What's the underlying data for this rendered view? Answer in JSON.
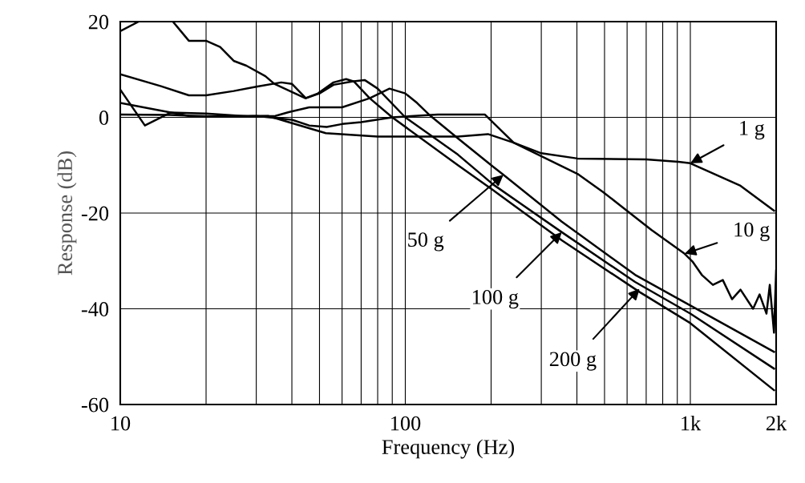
{
  "chart_data": {
    "type": "line",
    "xlabel": "Frequency (Hz)",
    "ylabel": "Response (dB)",
    "log": "x",
    "grid": true,
    "marker": "none",
    "line_style": "solid",
    "xlim": [
      10,
      2000
    ],
    "ylim": [
      -60,
      20
    ],
    "xticks": [
      10,
      {
        "value": 20,
        "label": null
      },
      {
        "value": 30,
        "label": null
      },
      {
        "value": 40,
        "label": null
      },
      {
        "value": 50,
        "label": null
      },
      {
        "value": 60,
        "label": null
      },
      {
        "value": 70,
        "label": null
      },
      {
        "value": 80,
        "label": null
      },
      {
        "value": 90,
        "label": null
      },
      100,
      {
        "value": 200,
        "label": null
      },
      {
        "value": 300,
        "label": null
      },
      {
        "value": 400,
        "label": null
      },
      {
        "value": 500,
        "label": null
      },
      {
        "value": 600,
        "label": null
      },
      {
        "value": 700,
        "label": null
      },
      {
        "value": 800,
        "label": null
      },
      {
        "value": 900,
        "label": null
      },
      {
        "value": 1000,
        "label": "1k"
      },
      {
        "value": 2000,
        "label": "2k"
      }
    ],
    "yticks": [
      -60,
      -40,
      -20,
      0,
      20
    ],
    "series": [
      {
        "color": "#000000",
        "x": [
          10,
          17.4,
          25,
          33,
          39,
          52.6,
          80,
          153,
          195,
          240,
          300,
          402,
          700,
          909,
          1000,
          1500,
          1966
        ],
        "values": [
          3,
          0.3,
          0.2,
          0.3,
          -1,
          -3.3,
          -4,
          -4,
          -3.5,
          -5.3,
          -7.5,
          -8.6,
          -8.8,
          -9.3,
          -9.6,
          -14.3,
          -19.5
        ]
      },
      {
        "color": "#000000",
        "x": [
          10,
          15,
          20,
          30,
          40,
          46,
          53,
          60,
          70,
          90,
          130,
          190,
          240,
          402,
          494,
          730,
          955,
          1020,
          1100,
          1200,
          1300,
          1400,
          1500,
          1660,
          1750,
          1850,
          1900,
          1966,
          2000
        ],
        "values": [
          0.6,
          0.5,
          0.2,
          0.3,
          -0.5,
          -1.7,
          -2,
          -1.4,
          -1,
          0,
          0.6,
          0.6,
          -5.3,
          -11.8,
          -15.6,
          -23.5,
          -28.5,
          -30.2,
          -33,
          -35,
          -34,
          -38,
          -36,
          -40,
          -37,
          -41,
          -35,
          -45,
          -32
        ]
      },
      {
        "color": "#000000",
        "x": [
          10,
          12.2,
          15,
          20,
          28,
          35,
          39,
          46,
          60,
          75,
          88,
          100,
          110,
          121,
          153,
          203,
          221,
          354,
          640,
          1000,
          1966
        ],
        "values": [
          5.8,
          -1.7,
          1,
          0.8,
          0.2,
          0.3,
          1.1,
          2.1,
          2.1,
          4,
          6,
          5,
          3,
          0.6,
          -4.4,
          -10.3,
          -12,
          -21.8,
          -32.9,
          -39.3,
          -49
        ]
      },
      {
        "color": "#000000",
        "x": [
          10,
          13.9,
          17.4,
          20,
          25,
          30,
          36.7,
          40,
          44.8,
          50,
          56,
          65,
          72,
          80,
          100,
          153,
          203,
          354,
          640,
          1000,
          1966
        ],
        "values": [
          9,
          6.5,
          4.6,
          4.6,
          5.5,
          6.4,
          7.3,
          7,
          4,
          5,
          6.8,
          7.5,
          7.8,
          6,
          0,
          -7.8,
          -14,
          -24,
          -34.4,
          -41,
          -52.5
        ]
      },
      {
        "color": "#000000",
        "x": [
          10,
          11.6,
          12,
          15.3,
          17.4,
          20,
          22.4,
          25,
          27.7,
          32.3,
          34.7,
          44.6,
          49.4,
          56,
          62,
          66,
          75,
          90,
          153,
          203,
          354,
          664,
          1000,
          1966
        ],
        "values": [
          18,
          20,
          null,
          20,
          16,
          16,
          14.7,
          11.8,
          10.8,
          8.6,
          7,
          4,
          5,
          7.3,
          8,
          7.5,
          4,
          0,
          -10,
          -15.2,
          -25.7,
          -36.5,
          -43,
          -57
        ]
      }
    ],
    "annotations": [
      {
        "text": "1 g",
        "x": 1000,
        "y": -9.6
      },
      {
        "text": "10 g",
        "x": 955,
        "y": -28.5
      },
      {
        "text": "50 g",
        "x": 221,
        "y": -12
      },
      {
        "text": "100 g",
        "x": 354,
        "y": -24
      },
      {
        "text": "200 g",
        "x": 664,
        "y": -35.8
      }
    ]
  }
}
